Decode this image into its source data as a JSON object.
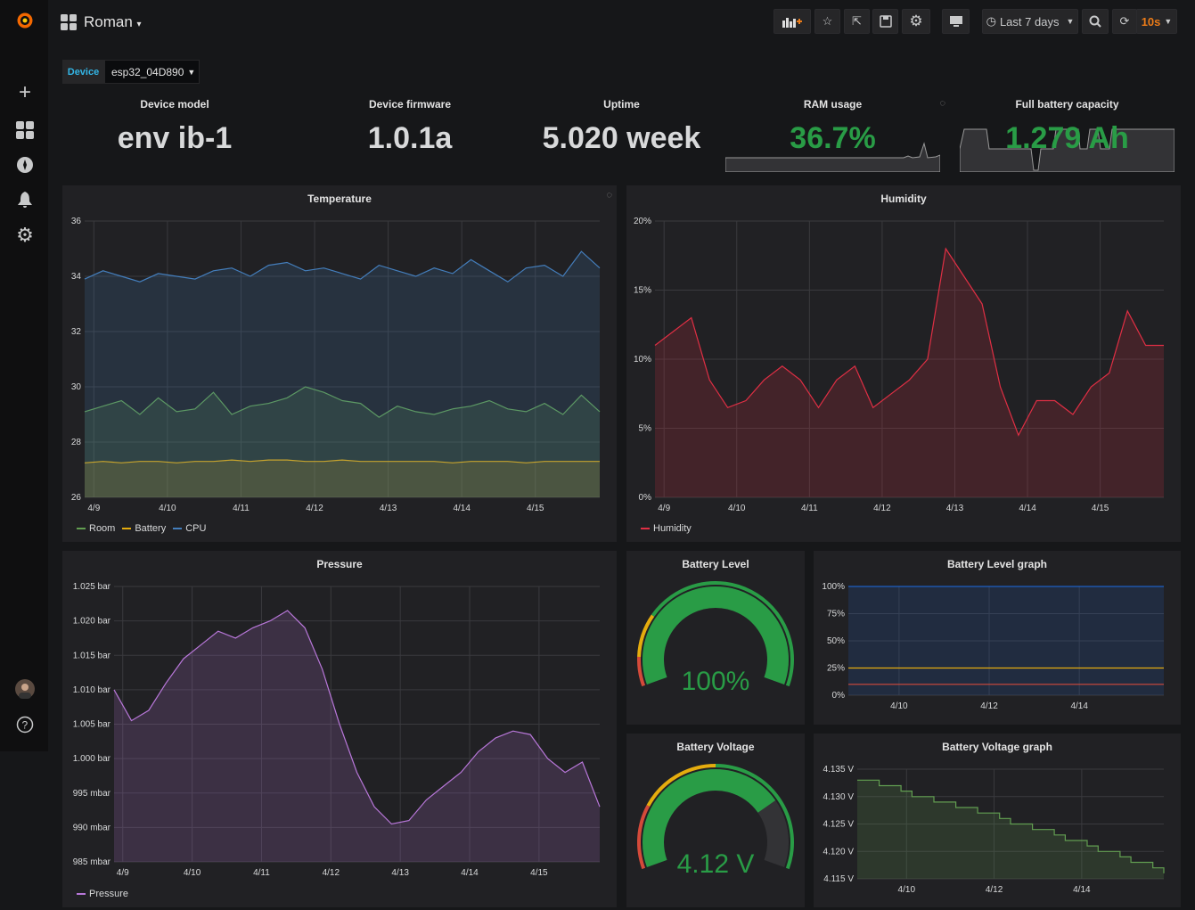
{
  "colors": {
    "accent": "#eb7b18",
    "green": "#299c46",
    "room": "#629e51",
    "battery": "#e5ac0e",
    "cpu": "#447ebc",
    "humidity": "#e02f44",
    "pressure": "#b877d9",
    "red": "#d44a3a",
    "yellow": "#e5ac0e"
  },
  "topbar": {
    "dashboard_title": "Roman",
    "time_range": "Last 7 days",
    "refresh": "10s",
    "buttons": [
      "add-panel-icon",
      "star-icon",
      "share-icon",
      "save-icon",
      "settings-icon",
      "tv-mode-icon",
      "zoom-out-icon",
      "refresh-icon"
    ]
  },
  "variables": {
    "label": "Device",
    "value": "esp32_04D890"
  },
  "stats": [
    {
      "title": "Device model",
      "value": "env ib-1"
    },
    {
      "title": "Device firmware",
      "value": "1.0.1a"
    },
    {
      "title": "Uptime",
      "value": "5.020 week"
    },
    {
      "title": "RAM usage",
      "value": "36.7%"
    },
    {
      "title": "Full battery capacity",
      "value": "1.279 Ah"
    }
  ],
  "gauges": [
    {
      "title": "Battery Level",
      "value": "100%",
      "fill": 1.0,
      "thresholds": [
        {
          "to": 0.1,
          "color": "#d44a3a"
        },
        {
          "to": 0.25,
          "color": "#e5ac0e"
        },
        {
          "to": 1,
          "color": "#299c46"
        }
      ]
    },
    {
      "title": "Battery Voltage",
      "value": "4.12 V",
      "fill": 0.75,
      "thresholds": [
        {
          "to": 0.22,
          "color": "#d44a3a"
        },
        {
          "to": 0.5,
          "color": "#e5ac0e"
        },
        {
          "to": 1,
          "color": "#299c46"
        }
      ]
    }
  ],
  "chart_data": [
    {
      "id": "temperature",
      "title": "Temperature",
      "type": "line",
      "ylim": [
        26,
        36
      ],
      "yticks": [
        26,
        28,
        30,
        32,
        34,
        36
      ],
      "ytick_labels": [
        "26",
        "28",
        "30",
        "32",
        "34",
        "36"
      ],
      "xlim": [
        "4/8 21:00",
        "4/15 21:00"
      ],
      "xticks": [
        "4/9 00:00",
        "4/10 00:00",
        "4/11 00:00",
        "4/12 00:00",
        "4/13 00:00",
        "4/14 00:00",
        "4/15 00:00"
      ],
      "xtick_labels": [
        "4/9",
        "4/10",
        "4/11",
        "4/12",
        "4/13",
        "4/14",
        "4/15"
      ],
      "x_start": "4/8 21:00",
      "x_step_hours": 6,
      "grid": true,
      "legend": "bottom-left",
      "series": [
        {
          "name": "Room",
          "color": "#629e51",
          "values": [
            29.1,
            29.3,
            29.5,
            29.0,
            29.6,
            29.1,
            29.2,
            29.8,
            29.0,
            29.3,
            29.4,
            29.6,
            30.0,
            29.8,
            29.5,
            29.4,
            28.9,
            29.3,
            29.1,
            29.0,
            29.2,
            29.3,
            29.5,
            29.2,
            29.1,
            29.4,
            29.0,
            29.7,
            29.1
          ]
        },
        {
          "name": "Battery",
          "color": "#e5ac0e",
          "values": [
            27.25,
            27.3,
            27.25,
            27.3,
            27.3,
            27.25,
            27.3,
            27.3,
            27.35,
            27.3,
            27.35,
            27.35,
            27.3,
            27.3,
            27.35,
            27.3,
            27.3,
            27.3,
            27.3,
            27.3,
            27.25,
            27.3,
            27.3,
            27.3,
            27.25,
            27.3,
            27.3,
            27.3,
            27.3
          ]
        },
        {
          "name": "CPU",
          "color": "#447ebc",
          "values": [
            33.9,
            34.2,
            34.0,
            33.8,
            34.1,
            34.0,
            33.9,
            34.2,
            34.3,
            34.0,
            34.4,
            34.5,
            34.2,
            34.3,
            34.1,
            33.9,
            34.4,
            34.2,
            34.0,
            34.3,
            34.1,
            34.6,
            34.2,
            33.8,
            34.3,
            34.4,
            34.0,
            34.9,
            34.3
          ]
        }
      ]
    },
    {
      "id": "humidity",
      "title": "Humidity",
      "type": "area",
      "ylim": [
        0,
        20
      ],
      "yticks": [
        0,
        5,
        10,
        15,
        20
      ],
      "ytick_labels": [
        "0%",
        "5%",
        "10%",
        "15%",
        "20%"
      ],
      "xlim": [
        "4/8 21:00",
        "4/15 21:00"
      ],
      "xticks": [
        "4/9 00:00",
        "4/10 00:00",
        "4/11 00:00",
        "4/12 00:00",
        "4/13 00:00",
        "4/14 00:00",
        "4/15 00:00"
      ],
      "xtick_labels": [
        "4/9",
        "4/10",
        "4/11",
        "4/12",
        "4/13",
        "4/14",
        "4/15"
      ],
      "x_start": "4/8 21:00",
      "x_step_hours": 6,
      "grid": true,
      "legend": "bottom-left",
      "series": [
        {
          "name": "Humidity",
          "color": "#e02f44",
          "values": [
            11.0,
            12.0,
            13.0,
            8.5,
            6.5,
            7.0,
            8.5,
            9.5,
            8.5,
            6.5,
            8.5,
            9.5,
            6.5,
            7.5,
            8.5,
            10.0,
            18.0,
            16.0,
            14.0,
            8.0,
            4.5,
            7.0,
            7.0,
            6.0,
            8.0,
            9.0,
            13.5,
            11.0,
            11.0
          ]
        }
      ]
    },
    {
      "id": "pressure",
      "title": "Pressure",
      "type": "area",
      "ylim": [
        985,
        1025
      ],
      "yticks": [
        985,
        990,
        995,
        1000,
        1005,
        1010,
        1015,
        1020,
        1025
      ],
      "ytick_labels": [
        "985 mbar",
        "990 mbar",
        "995 mbar",
        "1.000 bar",
        "1.005 bar",
        "1.010 bar",
        "1.015 bar",
        "1.020 bar",
        "1.025 bar"
      ],
      "xlim": [
        "4/8 21:00",
        "4/15 21:00"
      ],
      "xticks": [
        "4/9 00:00",
        "4/10 00:00",
        "4/11 00:00",
        "4/12 00:00",
        "4/13 00:00",
        "4/14 00:00",
        "4/15 00:00"
      ],
      "xtick_labels": [
        "4/9",
        "4/10",
        "4/11",
        "4/12",
        "4/13",
        "4/14",
        "4/15"
      ],
      "x_start": "4/8 21:00",
      "x_step_hours": 6,
      "grid": true,
      "legend": "bottom-left",
      "series": [
        {
          "name": "Pressure",
          "color": "#b877d9",
          "values": [
            1010,
            1005.5,
            1007,
            1011,
            1014.5,
            1016.5,
            1018.5,
            1017.5,
            1019,
            1020,
            1021.5,
            1019,
            1013,
            1005,
            998,
            993,
            990.5,
            991,
            994,
            996,
            998,
            1001,
            1003,
            1004,
            1003.5,
            1000,
            998,
            999.5,
            993
          ]
        }
      ]
    },
    {
      "id": "battery-level",
      "title": "Battery Level graph",
      "type": "area",
      "ylim": [
        0,
        100
      ],
      "yticks": [
        0,
        25,
        50,
        75,
        100
      ],
      "ytick_labels": [
        "0%",
        "25%",
        "50%",
        "75%",
        "100%"
      ],
      "xlim": [
        "4/8 21:00",
        "4/15 21:00"
      ],
      "xticks": [
        "4/10 00:00",
        "4/12 00:00",
        "4/14 00:00"
      ],
      "xtick_labels": [
        "4/10",
        "4/12",
        "4/14"
      ],
      "x_start": "4/8 21:00",
      "x_step_hours": 6,
      "grid": true,
      "threshold_lines": [
        {
          "value": 25,
          "color": "#e5ac0e"
        },
        {
          "value": 10,
          "color": "#d44a3a"
        }
      ],
      "series": [
        {
          "color": "#1f60c4",
          "values": [
            100,
            100,
            100,
            100,
            100,
            100,
            100,
            100,
            100,
            100,
            100,
            100,
            100,
            100,
            100,
            100,
            100,
            100,
            100,
            100,
            100,
            100,
            100,
            100,
            100,
            100,
            100,
            100,
            100
          ]
        }
      ]
    },
    {
      "id": "battery-voltage",
      "title": "Battery Voltage graph",
      "type": "area",
      "step": true,
      "ylim": [
        4.115,
        4.135
      ],
      "yticks": [
        4.115,
        4.12,
        4.125,
        4.13,
        4.135
      ],
      "ytick_labels": [
        "4.115 V",
        "4.120 V",
        "4.125 V",
        "4.130 V",
        "4.135 V"
      ],
      "xlim": [
        "4/8 21:00",
        "4/15 21:00"
      ],
      "xticks": [
        "4/10 00:00",
        "4/12 00:00",
        "4/14 00:00"
      ],
      "xtick_labels": [
        "4/10",
        "4/12",
        "4/14"
      ],
      "x_start": "4/8 21:00",
      "x_step_hours": 6,
      "grid": true,
      "series": [
        {
          "color": "#629e51",
          "values": [
            4.133,
            4.133,
            4.132,
            4.132,
            4.131,
            4.13,
            4.13,
            4.129,
            4.129,
            4.128,
            4.128,
            4.127,
            4.127,
            4.126,
            4.125,
            4.125,
            4.124,
            4.124,
            4.123,
            4.122,
            4.122,
            4.121,
            4.12,
            4.12,
            4.119,
            4.118,
            4.118,
            4.117,
            4.116
          ]
        }
      ]
    }
  ]
}
